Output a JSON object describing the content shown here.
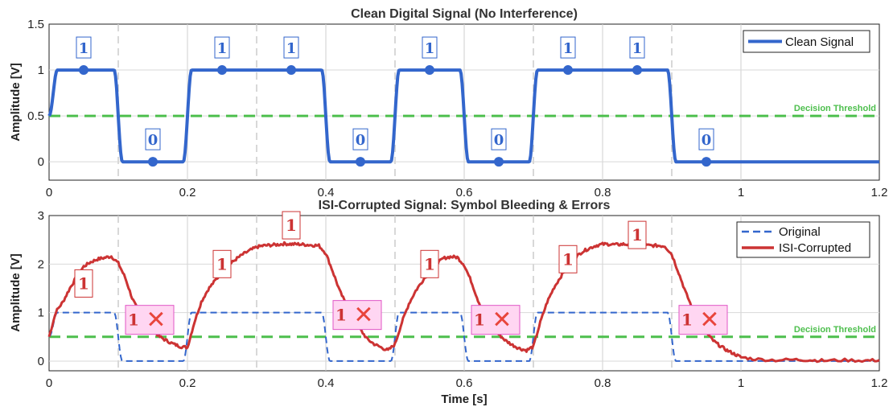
{
  "chart_data": [
    {
      "type": "line",
      "title": "Clean Digital Signal (No Interference)",
      "xlabel": "",
      "ylabel": "Amplitude [V]",
      "xlim": [
        0,
        1.2
      ],
      "ylim": [
        -0.2,
        1.5
      ],
      "xticks": [
        "0",
        "0.2",
        "0.4",
        "0.6",
        "0.8",
        "1",
        "1.2"
      ],
      "yticks": [
        "0",
        "0.5",
        "1",
        "1.5"
      ],
      "grid": true,
      "legend_position": "top-right",
      "symbol_period": 0.1,
      "bits": [
        1,
        0,
        1,
        1,
        0,
        1,
        0,
        1,
        1,
        0
      ],
      "bit_labels": [
        "1",
        "0",
        "1",
        "1",
        "0",
        "1",
        "0",
        "1",
        "1",
        "0"
      ],
      "sample_times": [
        0.05,
        0.15,
        0.25,
        0.35,
        0.45,
        0.55,
        0.65,
        0.75,
        0.85,
        0.95
      ],
      "threshold": {
        "value": 0.5,
        "label": "Decision Threshold",
        "color": "#4dbf4d"
      },
      "series": [
        {
          "name": "Clean Signal",
          "color": "#3366cc",
          "style": "solid"
        }
      ]
    },
    {
      "type": "line",
      "title": "ISI-Corrupted Signal: Symbol Bleeding & Errors",
      "xlabel": "Time [s]",
      "ylabel": "Amplitude [V]",
      "xlim": [
        0,
        1.2
      ],
      "ylim": [
        -0.2,
        3
      ],
      "xticks": [
        "0",
        "0.2",
        "0.4",
        "0.6",
        "0.8",
        "1",
        "1.2"
      ],
      "yticks": [
        "0",
        "1",
        "2",
        "3"
      ],
      "grid": true,
      "legend_position": "top-right",
      "threshold": {
        "value": 0.5,
        "label": "Decision Threshold",
        "color": "#4dbf4d"
      },
      "series": [
        {
          "name": "Original",
          "color": "#3366cc",
          "style": "dashed"
        },
        {
          "name": "ISI-Corrupted",
          "color": "#cc3333",
          "style": "solid",
          "x": [
            0,
            0.01,
            0.02,
            0.03,
            0.04,
            0.05,
            0.06,
            0.07,
            0.08,
            0.09,
            0.1,
            0.11,
            0.12,
            0.13,
            0.14,
            0.15,
            0.16,
            0.17,
            0.18,
            0.19,
            0.2,
            0.21,
            0.22,
            0.23,
            0.24,
            0.25,
            0.26,
            0.27,
            0.28,
            0.29,
            0.3,
            0.31,
            0.32,
            0.33,
            0.34,
            0.35,
            0.36,
            0.37,
            0.38,
            0.39,
            0.4,
            0.41,
            0.42,
            0.43,
            0.44,
            0.45,
            0.46,
            0.47,
            0.48,
            0.49,
            0.5,
            0.51,
            0.52,
            0.53,
            0.54,
            0.55,
            0.56,
            0.57,
            0.58,
            0.59,
            0.6,
            0.61,
            0.62,
            0.63,
            0.64,
            0.65,
            0.66,
            0.67,
            0.68,
            0.69,
            0.7,
            0.71,
            0.72,
            0.73,
            0.74,
            0.75,
            0.76,
            0.77,
            0.78,
            0.79,
            0.8,
            0.81,
            0.82,
            0.83,
            0.84,
            0.85,
            0.86,
            0.87,
            0.88,
            0.89,
            0.9,
            0.91,
            0.92,
            0.93,
            0.94,
            0.95,
            0.96,
            0.97,
            0.98,
            0.99,
            1.0,
            1.02,
            1.05,
            1.08,
            1.1,
            1.12,
            1.15,
            1.18,
            1.2
          ],
          "y": [
            0.5,
            1.02,
            1.22,
            1.5,
            1.74,
            1.95,
            2.04,
            2.1,
            2.13,
            2.16,
            2.02,
            1.72,
            1.3,
            1.0,
            0.85,
            0.65,
            0.5,
            0.42,
            0.35,
            0.3,
            0.28,
            0.8,
            1.22,
            1.48,
            1.66,
            1.82,
            1.98,
            2.1,
            2.2,
            2.28,
            2.35,
            2.38,
            2.39,
            2.4,
            2.42,
            2.41,
            2.41,
            2.4,
            2.39,
            2.38,
            2.22,
            1.85,
            1.45,
            1.15,
            0.9,
            0.65,
            0.45,
            0.35,
            0.28,
            0.22,
            0.35,
            0.8,
            1.18,
            1.45,
            1.66,
            1.85,
            2.0,
            2.12,
            2.15,
            2.14,
            1.98,
            1.65,
            1.25,
            0.95,
            0.72,
            0.55,
            0.42,
            0.33,
            0.26,
            0.22,
            0.3,
            0.8,
            1.22,
            1.52,
            1.75,
            1.95,
            2.12,
            2.25,
            2.32,
            2.38,
            2.41,
            2.41,
            2.4,
            2.41,
            2.4,
            2.4,
            2.39,
            2.38,
            2.38,
            2.37,
            2.2,
            1.82,
            1.42,
            1.08,
            0.8,
            0.58,
            0.42,
            0.31,
            0.22,
            0.15,
            0.08,
            0.04,
            0.02,
            0.03,
            0.02,
            0.01,
            0.02,
            0.01,
            0.02
          ]
        }
      ],
      "marker_labels": [
        {
          "t": 0.05,
          "text": "1",
          "y": 1.6,
          "error": false
        },
        {
          "t": 0.15,
          "text": "1",
          "y": 0.85,
          "error": true
        },
        {
          "t": 0.25,
          "text": "1",
          "y": 2.0,
          "error": false
        },
        {
          "t": 0.35,
          "text": "1",
          "y": 2.8,
          "error": false
        },
        {
          "t": 0.45,
          "text": "1",
          "y": 0.95,
          "error": true
        },
        {
          "t": 0.55,
          "text": "1",
          "y": 2.0,
          "error": false
        },
        {
          "t": 0.65,
          "text": "1",
          "y": 0.85,
          "error": true
        },
        {
          "t": 0.75,
          "text": "1",
          "y": 2.1,
          "error": false
        },
        {
          "t": 0.85,
          "text": "1",
          "y": 2.6,
          "error": false
        },
        {
          "t": 0.95,
          "text": "1",
          "y": 0.85,
          "error": true
        }
      ],
      "error_mark": "✕"
    }
  ]
}
